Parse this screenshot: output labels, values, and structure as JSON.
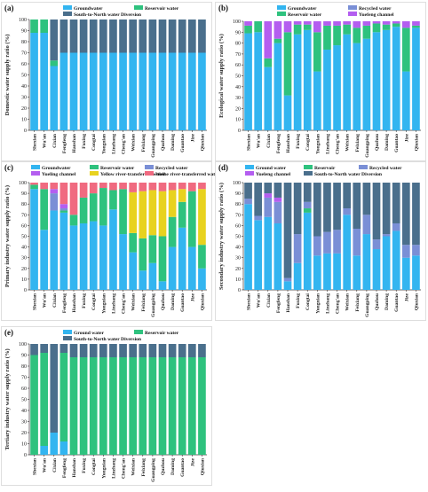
{
  "chart_data": [
    {
      "panel": "(a)",
      "type": "bar",
      "stacked": true,
      "ylabel": "Domestic water supply ratio (%)",
      "ylim": [
        0,
        100
      ],
      "yticks": [
        0,
        10,
        20,
        30,
        40,
        50,
        60,
        70,
        80,
        90,
        100
      ],
      "legend_placement": "top",
      "categories": [
        "Shexian",
        "Wu'an",
        "Cixian",
        "Fengfeng",
        "Hanshan",
        "Fuxing",
        "Congtai",
        "Yongnian",
        "Linzhang",
        "Cheng'an",
        "Weixian",
        "Feixiang",
        "Guangping",
        "Quzhou",
        "Daming",
        "Guantao",
        "Jize",
        "Qiuxian"
      ],
      "series": [
        {
          "name": "Groundwater",
          "color": "#33b5f0",
          "values": [
            88,
            88,
            58,
            70,
            70,
            70,
            70,
            70,
            70,
            70,
            70,
            70,
            70,
            70,
            70,
            70,
            70,
            70
          ]
        },
        {
          "name": "Reservoir water",
          "color": "#2ec27e",
          "values": [
            12,
            12,
            5,
            0,
            0,
            0,
            0,
            0,
            0,
            0,
            0,
            0,
            0,
            0,
            0,
            0,
            0,
            0
          ]
        },
        {
          "name": "South-to-North water Diversion",
          "color": "#4a6f8c",
          "values": [
            0,
            0,
            37,
            30,
            30,
            30,
            30,
            30,
            30,
            30,
            30,
            30,
            30,
            30,
            30,
            30,
            30,
            30
          ]
        }
      ]
    },
    {
      "panel": "(b)",
      "type": "bar",
      "stacked": true,
      "ylabel": "Ecological water supply ratio (%)",
      "ylim": [
        0,
        100
      ],
      "yticks": [
        0,
        10,
        20,
        30,
        40,
        50,
        60,
        70,
        80,
        90,
        100
      ],
      "legend_placement": "top",
      "categories": [
        "Shexian",
        "Wu'an",
        "Cixian",
        "Fengfeng",
        "Hanshan",
        "Fuxing",
        "Congtai",
        "Yongnian",
        "Linzhang",
        "Cheng'an",
        "Weixian",
        "Feixiang",
        "Guangping",
        "Quzhou",
        "Daming",
        "Guantao",
        "Jize",
        "Qiuxian"
      ],
      "series": [
        {
          "name": "Groundwater",
          "color": "#33b5f0",
          "values": [
            89,
            90,
            58,
            80,
            32,
            88,
            92,
            54,
            74,
            78,
            88,
            80,
            84,
            90,
            92,
            95,
            54,
            94
          ]
        },
        {
          "name": "Recycled water",
          "color": "#7a8fd6",
          "values": [
            0,
            0,
            0,
            0,
            0,
            0,
            0,
            0,
            0,
            0,
            0,
            0,
            0,
            0,
            0,
            0,
            0,
            0
          ]
        },
        {
          "name": "Reservoir water",
          "color": "#2ec27e",
          "values": [
            7,
            10,
            8,
            4,
            58,
            9,
            5,
            36,
            22,
            18,
            9,
            14,
            12,
            8,
            5,
            3,
            40,
            2
          ]
        },
        {
          "name": "Yuefeng channel",
          "color": "#b45ef0",
          "values": [
            4,
            0,
            34,
            16,
            10,
            3,
            3,
            10,
            4,
            4,
            3,
            6,
            4,
            2,
            3,
            2,
            6,
            4
          ]
        }
      ]
    },
    {
      "panel": "(c)",
      "type": "bar",
      "stacked": true,
      "ylabel": "Primary industry water supply ratio (%)",
      "ylim": [
        0,
        100
      ],
      "yticks": [
        0,
        10,
        20,
        30,
        40,
        50,
        60,
        70,
        80,
        90,
        100
      ],
      "legend_placement": "top",
      "categories": [
        "Shexian",
        "Wu'an",
        "Cixian",
        "Fengfeng",
        "Hanshan",
        "Fuxing",
        "Congtai",
        "Yongnian",
        "Linzhang",
        "Cheng'an",
        "Weixian",
        "Feixiang",
        "Guangping",
        "Quzhou",
        "Daming",
        "Guantao",
        "Jize",
        "Qiuxian"
      ],
      "series": [
        {
          "name": "Groundwater",
          "color": "#33b5f0",
          "values": [
            94,
            56,
            74,
            72,
            60,
            62,
            64,
            60,
            75,
            52,
            35,
            18,
            25,
            8,
            40,
            58,
            40,
            20
          ]
        },
        {
          "name": "Reservoir water",
          "color": "#2ec27e",
          "values": [
            4,
            38,
            0,
            2,
            10,
            24,
            26,
            35,
            18,
            42,
            18,
            30,
            26,
            42,
            28,
            24,
            52,
            22
          ]
        },
        {
          "name": "Recycled water",
          "color": "#7a8fd6",
          "values": [
            0,
            0,
            16,
            2,
            0,
            0,
            0,
            0,
            0,
            0,
            0,
            0,
            0,
            0,
            0,
            0,
            0,
            0
          ]
        },
        {
          "name": "Yueling channel",
          "color": "#b45ef0",
          "values": [
            0,
            0,
            4,
            4,
            0,
            0,
            0,
            0,
            0,
            0,
            0,
            0,
            0,
            0,
            0,
            0,
            0,
            0
          ]
        },
        {
          "name": "Yellow river-transferred water",
          "color": "#e8d21f",
          "values": [
            0,
            0,
            0,
            0,
            0,
            0,
            0,
            0,
            0,
            0,
            38,
            44,
            42,
            42,
            25,
            12,
            0,
            52
          ]
        },
        {
          "name": "Weihe river-transferred water",
          "color": "#f06a80",
          "values": [
            2,
            6,
            6,
            20,
            30,
            14,
            10,
            5,
            7,
            6,
            9,
            8,
            7,
            8,
            7,
            6,
            8,
            6
          ]
        }
      ]
    },
    {
      "panel": "(d)",
      "type": "bar",
      "stacked": true,
      "ylabel": "Secondary industry water supply ratio (%)",
      "ylim": [
        0,
        100
      ],
      "yticks": [
        0,
        10,
        20,
        30,
        40,
        50,
        60,
        70,
        80,
        90,
        100
      ],
      "legend_placement": "top",
      "categories": [
        "Shexian",
        "Wu'an",
        "Cixian",
        "Fengfeng",
        "Hanshan",
        "Fuxing",
        "Congtai",
        "Yongnian",
        "Linzhang",
        "Cheng'an",
        "Weixian",
        "Feixiang",
        "Guangping",
        "Quzhou",
        "Daming",
        "Guantao",
        "Jize",
        "Qiuxian"
      ],
      "series": [
        {
          "name": "Ground water",
          "color": "#33b5f0",
          "values": [
            80,
            65,
            68,
            62,
            8,
            25,
            72,
            32,
            34,
            34,
            70,
            32,
            52,
            38,
            50,
            55,
            30,
            32
          ]
        },
        {
          "name": "Reservoir",
          "color": "#2ec27e",
          "values": [
            0,
            0,
            0,
            0,
            0,
            0,
            4,
            0,
            0,
            0,
            0,
            0,
            0,
            0,
            0,
            0,
            0,
            0
          ]
        },
        {
          "name": "Recycled water",
          "color": "#7a8fd6",
          "values": [
            5,
            4,
            18,
            20,
            3,
            27,
            6,
            18,
            20,
            22,
            6,
            25,
            18,
            9,
            2,
            7,
            12,
            10
          ]
        },
        {
          "name": "Yueleng channel",
          "color": "#b45ef0",
          "values": [
            0,
            0,
            4,
            4,
            0,
            0,
            0,
            0,
            0,
            0,
            0,
            0,
            0,
            0,
            0,
            0,
            0,
            0
          ]
        },
        {
          "name": "South-to-North water Diversion",
          "color": "#4a6f8c",
          "values": [
            15,
            31,
            10,
            14,
            89,
            48,
            18,
            50,
            46,
            44,
            24,
            43,
            30,
            53,
            48,
            38,
            58,
            58
          ]
        }
      ]
    },
    {
      "panel": "(e)",
      "type": "bar",
      "stacked": true,
      "ylabel": "Tertiary industry water supply ratio (%)",
      "ylim": [
        0,
        100
      ],
      "yticks": [
        0,
        10,
        20,
        30,
        40,
        50,
        60,
        70,
        80,
        90,
        100
      ],
      "legend_placement": "top",
      "categories": [
        "Shexian",
        "Wu'an",
        "Cixian",
        "Fengfeng",
        "Hanshan",
        "Fuxing",
        "Congtai",
        "Yongnian",
        "Linzhang",
        "Cheng'an",
        "Weixian",
        "Feixiang",
        "Guangping",
        "Quzhou",
        "Daming",
        "Guantao",
        "Jize",
        "Qiuxian"
      ],
      "series": [
        {
          "name": "Ground water",
          "color": "#33b5f0",
          "values": [
            0,
            8,
            20,
            12,
            0,
            0,
            0,
            0,
            0,
            0,
            0,
            0,
            0,
            0,
            0,
            0,
            0,
            0
          ]
        },
        {
          "name": "Reservoir water",
          "color": "#2ec27e",
          "values": [
            90,
            84,
            0,
            80,
            88,
            88,
            88,
            88,
            88,
            88,
            88,
            88,
            88,
            88,
            88,
            88,
            88,
            88
          ]
        },
        {
          "name": "South-to-North water Diversion",
          "color": "#4a6f8c",
          "values": [
            10,
            8,
            80,
            8,
            12,
            12,
            12,
            12,
            12,
            12,
            12,
            12,
            12,
            12,
            12,
            12,
            12,
            12
          ]
        }
      ]
    }
  ]
}
